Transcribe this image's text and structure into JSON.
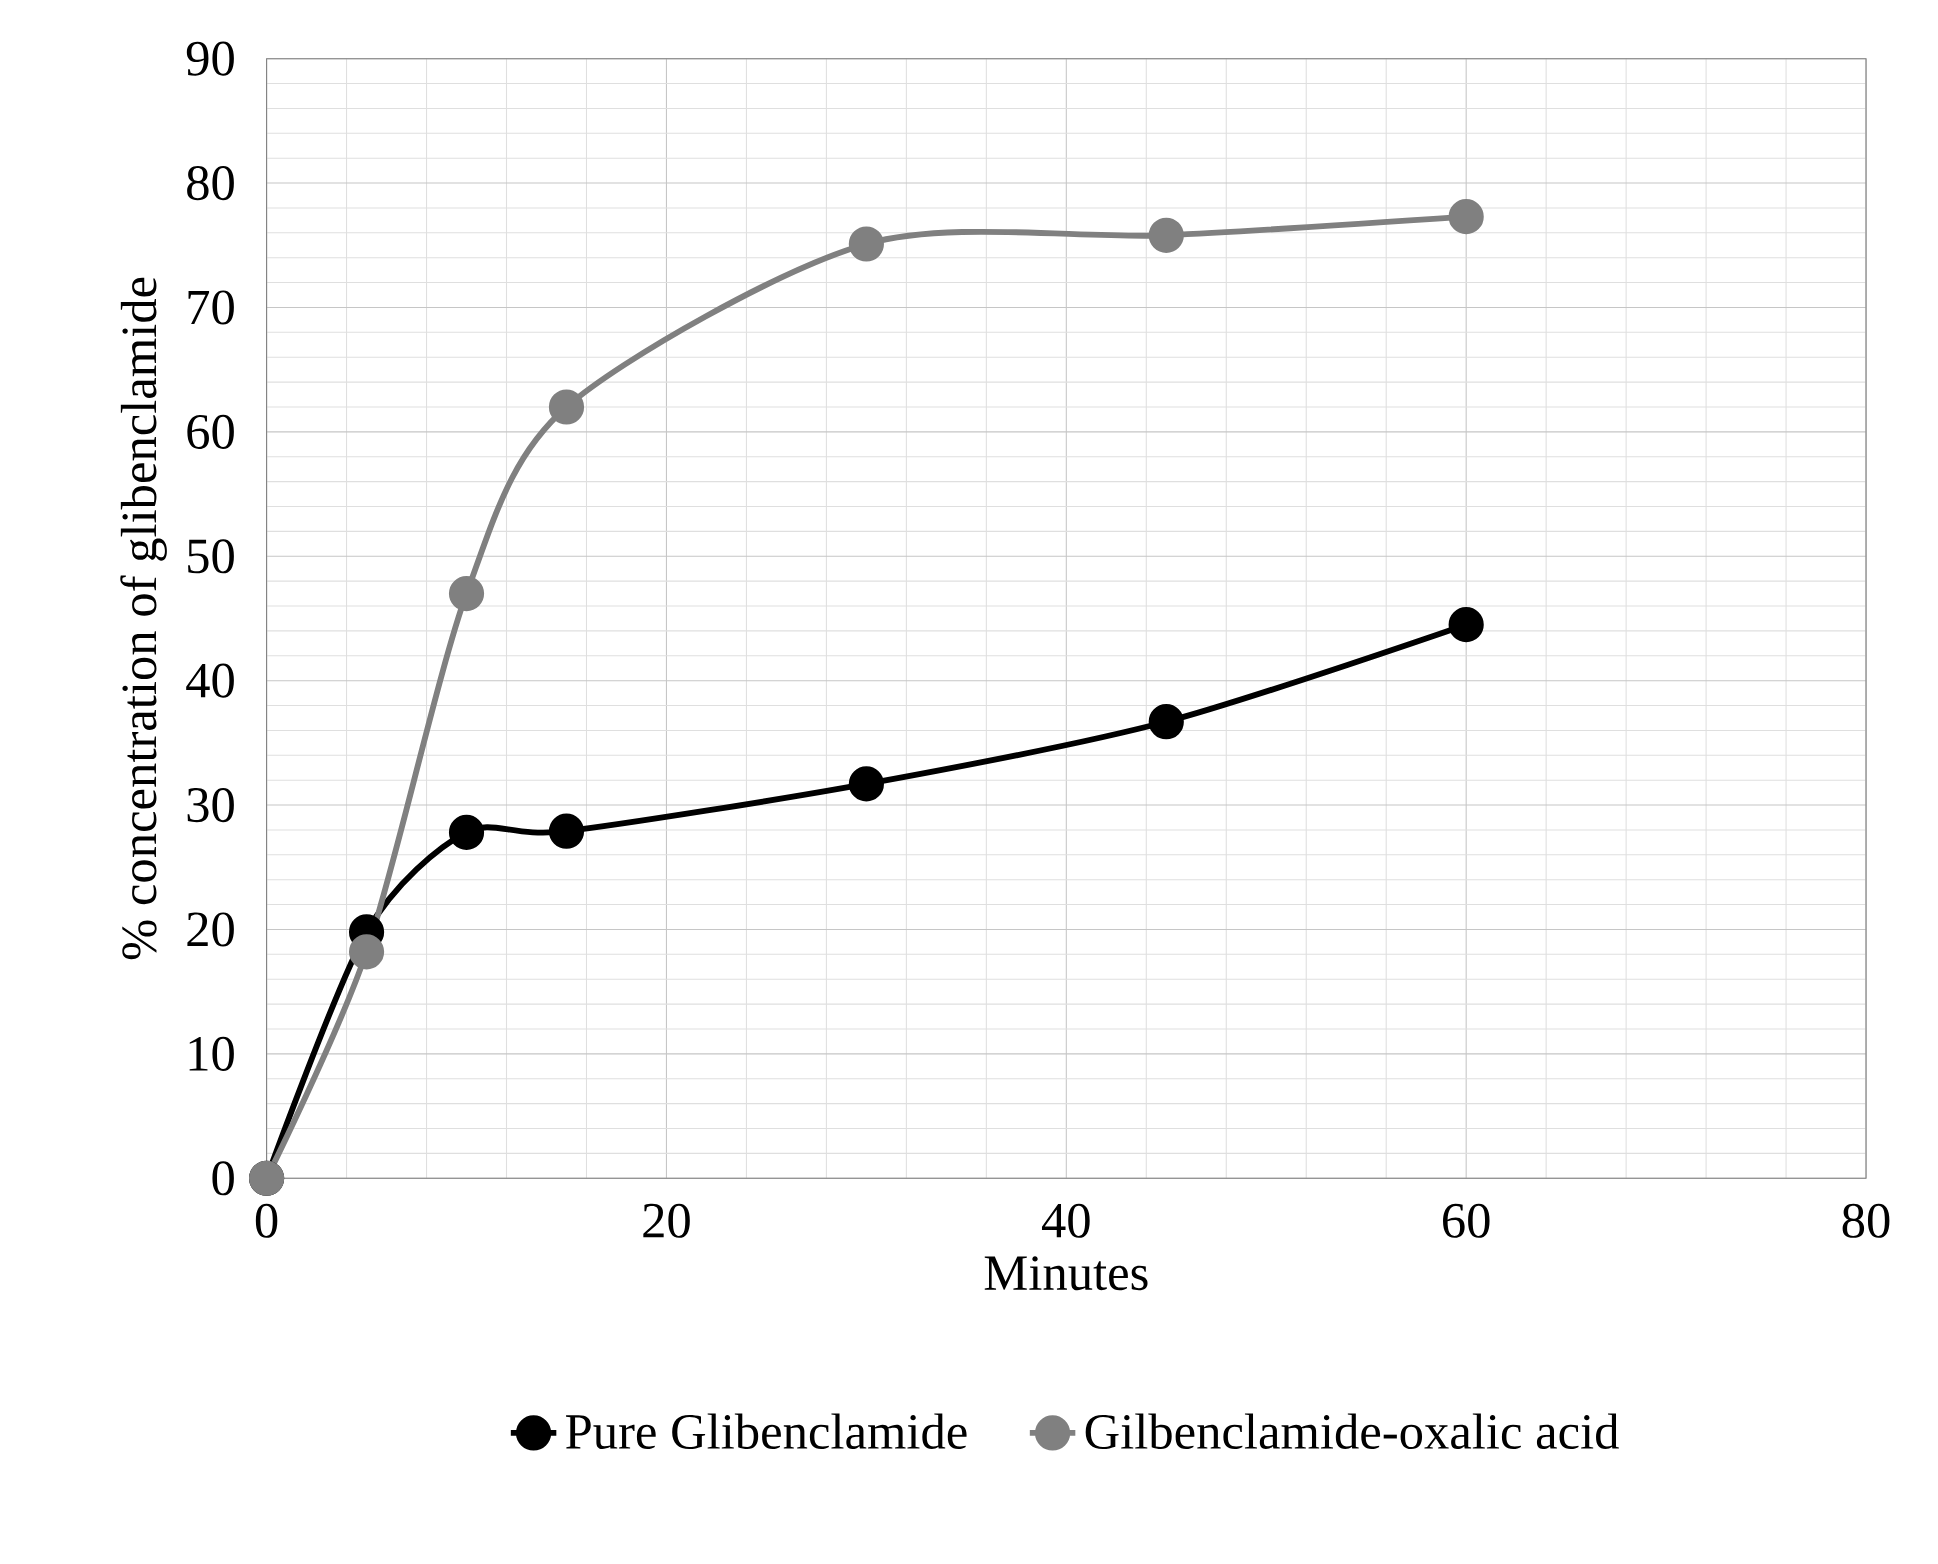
{
  "chart_data": {
    "type": "line",
    "xlabel": "Minutes",
    "ylabel": "% concentration of glibenclamide",
    "xlim": [
      0,
      80
    ],
    "xticks": [
      0,
      20,
      40,
      60,
      80
    ],
    "ylim": [
      0,
      90
    ],
    "yticks": [
      0,
      10,
      20,
      30,
      40,
      50,
      60,
      70,
      80,
      90
    ],
    "grid": true,
    "legend": "bottom",
    "marker": "circle",
    "line_style": "solid",
    "x": [
      0,
      5,
      10,
      15,
      30,
      45,
      60
    ],
    "series": [
      {
        "name": "Pure Glibenclamide",
        "color": "#000000",
        "values": [
          0,
          19.8,
          27.8,
          27.9,
          31.7,
          36.7,
          44.5
        ]
      },
      {
        "name": "Gilbenclamide-oxalic acid",
        "color": "#808080",
        "values": [
          0,
          18.2,
          47,
          62,
          75.1,
          75.8,
          77.3
        ]
      }
    ]
  }
}
